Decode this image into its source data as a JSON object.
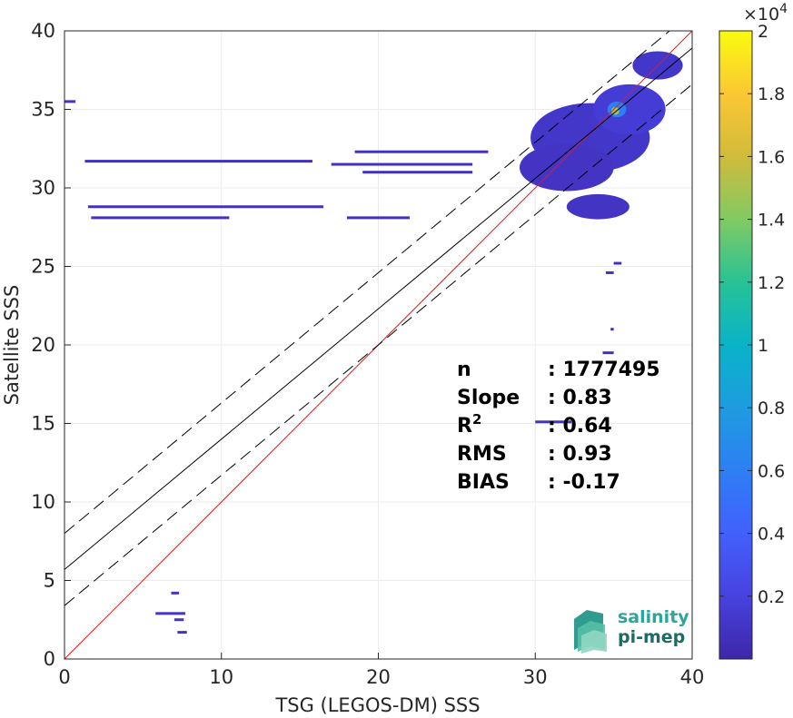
{
  "chart_data": {
    "type": "heatmap",
    "xlabel": "TSG (LEGOS-DM) SSS",
    "ylabel": "Satellite SSS",
    "xlim": [
      0,
      40
    ],
    "ylim": [
      0,
      40
    ],
    "xticks": [
      "0",
      "10",
      "20",
      "30",
      "40"
    ],
    "yticks": [
      "0",
      "5",
      "10",
      "15",
      "20",
      "25",
      "30",
      "35",
      "40"
    ],
    "grid": true,
    "colorbar": {
      "range": [
        0,
        20000
      ],
      "exponent_label": "×10",
      "exponent_power": "4",
      "ticks": [
        {
          "value": 0.2,
          "label": "0.2"
        },
        {
          "value": 0.4,
          "label": "0.4"
        },
        {
          "value": 0.6,
          "label": "0.6"
        },
        {
          "value": 0.8,
          "label": "0.8"
        },
        {
          "value": 1.0,
          "label": "1"
        },
        {
          "value": 1.2,
          "label": "1.2"
        },
        {
          "value": 1.4,
          "label": "1.4"
        },
        {
          "value": 1.6,
          "label": "1.6"
        },
        {
          "value": 1.8,
          "label": "1.8"
        },
        {
          "value": 2.0,
          "label": "2"
        }
      ],
      "colormap": "parula"
    },
    "lines": [
      {
        "kind": "identity",
        "color": "#e41a1c",
        "style": "solid",
        "slope": 1.0,
        "intercept": 0.0
      },
      {
        "kind": "regression",
        "color": "#000000",
        "style": "solid",
        "slope": 0.83,
        "intercept": 5.7
      },
      {
        "kind": "upper-bound",
        "color": "#000000",
        "style": "dashed",
        "slope": 0.83,
        "intercept": 8.0
      },
      {
        "kind": "lower-bound",
        "color": "#000000",
        "style": "dashed",
        "slope": 0.83,
        "intercept": 3.4
      }
    ],
    "stats": [
      {
        "label": "n",
        "sep": ": ",
        "value": "1777495"
      },
      {
        "label": "Slope",
        "sep": ": ",
        "value": "0.83"
      },
      {
        "label": "R",
        "sup": "2",
        "sep": ": ",
        "value": "0.64"
      },
      {
        "label": "RMS",
        "sep": ": ",
        "value": "0.93"
      },
      {
        "label": "BIAS",
        "sep": ": ",
        "value": "-0.17"
      }
    ],
    "density_segments": [
      {
        "x0": 0.0,
        "x1": 0.7,
        "y": 35.5,
        "level": 0.05
      },
      {
        "x0": 1.3,
        "x1": 15.8,
        "y": 31.7,
        "level": 0.04
      },
      {
        "x0": 1.5,
        "x1": 16.5,
        "y": 28.8,
        "level": 0.04
      },
      {
        "x0": 1.7,
        "x1": 10.5,
        "y": 28.1,
        "level": 0.04
      },
      {
        "x0": 17.0,
        "x1": 26.0,
        "y": 31.5,
        "level": 0.04
      },
      {
        "x0": 18.5,
        "x1": 27.0,
        "y": 32.3,
        "level": 0.04
      },
      {
        "x0": 19.0,
        "x1": 26.0,
        "y": 31.0,
        "level": 0.04
      },
      {
        "x0": 18.0,
        "x1": 22.0,
        "y": 28.1,
        "level": 0.04
      },
      {
        "x0": 6.8,
        "x1": 7.3,
        "y": 4.2,
        "level": 0.05
      },
      {
        "x0": 5.8,
        "x1": 7.7,
        "y": 2.9,
        "level": 0.06
      },
      {
        "x0": 7.0,
        "x1": 7.6,
        "y": 2.5,
        "level": 0.05
      },
      {
        "x0": 7.2,
        "x1": 7.8,
        "y": 1.7,
        "level": 0.05
      },
      {
        "x0": 30.0,
        "x1": 32.3,
        "y": 15.1,
        "level": 0.05
      },
      {
        "x0": 34.3,
        "x1": 35.0,
        "y": 19.5,
        "level": 0.04
      },
      {
        "x0": 34.5,
        "x1": 35.0,
        "y": 24.6,
        "level": 0.04
      },
      {
        "x0": 35.0,
        "x1": 35.5,
        "y": 25.2,
        "level": 0.04
      },
      {
        "x0": 34.8,
        "x1": 35.0,
        "y": 21.0,
        "level": 0.04
      }
    ],
    "density_blobs": [
      {
        "x": 33.5,
        "y": 33.2,
        "rx": 3.8,
        "ry": 2.2,
        "level": 0.06
      },
      {
        "x": 36.0,
        "y": 35.0,
        "rx": 2.3,
        "ry": 1.6,
        "level": 0.08
      },
      {
        "x": 32.0,
        "y": 31.3,
        "rx": 3.0,
        "ry": 1.5,
        "level": 0.05
      },
      {
        "x": 37.8,
        "y": 37.8,
        "rx": 1.6,
        "ry": 0.9,
        "level": 0.06
      },
      {
        "x": 34.0,
        "y": 28.8,
        "rx": 2.0,
        "ry": 0.8,
        "level": 0.05
      },
      {
        "x": 35.2,
        "y": 35.0,
        "rx": 0.6,
        "ry": 0.5,
        "level": 0.3
      },
      {
        "x": 35.1,
        "y": 34.9,
        "rx": 0.25,
        "ry": 0.25,
        "level": 0.75
      }
    ]
  },
  "logo": {
    "line1": "salinity",
    "line2": "pi-mep"
  }
}
